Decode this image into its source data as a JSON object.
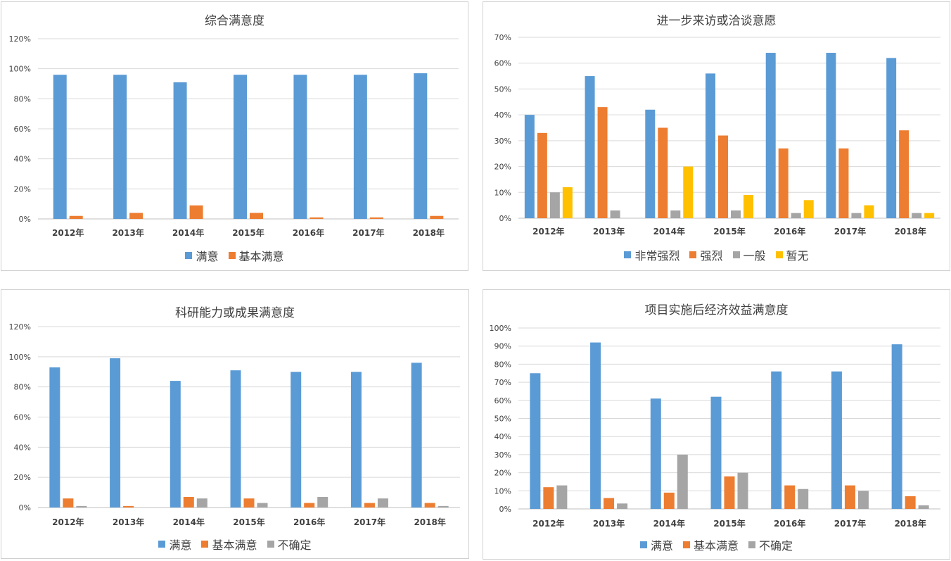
{
  "colors": {
    "blue": "#5b9bd5",
    "orange": "#ed7d31",
    "gray": "#a5a5a5",
    "yellow": "#ffc000"
  },
  "chart_data": [
    {
      "type": "bar",
      "title": "综合满意度",
      "categories": [
        "2012年",
        "2013年",
        "2014年",
        "2015年",
        "2016年",
        "2017年",
        "2018年"
      ],
      "yticks": [
        "0%",
        "20%",
        "40%",
        "60%",
        "80%",
        "100%",
        "120%"
      ],
      "ylim": [
        0,
        120
      ],
      "grid": true,
      "legend_position": "bottom",
      "series": [
        {
          "name": "满意",
          "color": "#5b9bd5",
          "values": [
            96,
            96,
            91,
            96,
            96,
            96,
            97
          ]
        },
        {
          "name": "基本满意",
          "color": "#ed7d31",
          "values": [
            2,
            4,
            9,
            4,
            1,
            1,
            2
          ]
        }
      ]
    },
    {
      "type": "bar",
      "title": "进一步来访或洽谈意愿",
      "categories": [
        "2012年",
        "2013年",
        "2014年",
        "2015年",
        "2016年",
        "2017年",
        "2018年"
      ],
      "yticks": [
        "0%",
        "10%",
        "20%",
        "30%",
        "40%",
        "50%",
        "60%",
        "70%"
      ],
      "ylim": [
        0,
        70
      ],
      "grid": true,
      "legend_position": "bottom",
      "series": [
        {
          "name": "非常强烈",
          "color": "#5b9bd5",
          "values": [
            40,
            55,
            42,
            56,
            64,
            64,
            62
          ]
        },
        {
          "name": "强烈",
          "color": "#ed7d31",
          "values": [
            33,
            43,
            35,
            32,
            27,
            27,
            34
          ]
        },
        {
          "name": "一般",
          "color": "#a5a5a5",
          "values": [
            10,
            3,
            3,
            3,
            2,
            2,
            2
          ]
        },
        {
          "name": "暂无",
          "color": "#ffc000",
          "values": [
            12,
            0,
            20,
            9,
            7,
            5,
            2
          ]
        }
      ]
    },
    {
      "type": "bar",
      "title": "科研能力或成果满意度",
      "categories": [
        "2012年",
        "2013年",
        "2014年",
        "2015年",
        "2016年",
        "2017年",
        "2018年"
      ],
      "yticks": [
        "0%",
        "20%",
        "40%",
        "60%",
        "80%",
        "100%",
        "120%"
      ],
      "ylim": [
        0,
        120
      ],
      "grid": true,
      "legend_position": "bottom",
      "series": [
        {
          "name": "满意",
          "color": "#5b9bd5",
          "values": [
            93,
            99,
            84,
            91,
            90,
            90,
            96
          ]
        },
        {
          "name": "基本满意",
          "color": "#ed7d31",
          "values": [
            6,
            1,
            7,
            6,
            3,
            3,
            3
          ]
        },
        {
          "name": "不确定",
          "color": "#a5a5a5",
          "values": [
            1,
            0,
            6,
            3,
            7,
            6,
            1
          ]
        }
      ]
    },
    {
      "type": "bar",
      "title": "项目实施后经济效益满意度",
      "categories": [
        "2012年",
        "2013年",
        "2014年",
        "2015年",
        "2016年",
        "2017年",
        "2018年"
      ],
      "yticks": [
        "0%",
        "10%",
        "20%",
        "30%",
        "40%",
        "50%",
        "60%",
        "70%",
        "80%",
        "90%",
        "100%"
      ],
      "ylim": [
        0,
        100
      ],
      "grid": true,
      "legend_position": "bottom",
      "series": [
        {
          "name": "满意",
          "color": "#5b9bd5",
          "values": [
            75,
            92,
            61,
            62,
            76,
            76,
            91
          ]
        },
        {
          "name": "基本满意",
          "color": "#ed7d31",
          "values": [
            12,
            6,
            9,
            18,
            13,
            13,
            7
          ]
        },
        {
          "name": "不确定",
          "color": "#a5a5a5",
          "values": [
            13,
            3,
            30,
            20,
            11,
            10,
            2
          ]
        }
      ]
    }
  ]
}
